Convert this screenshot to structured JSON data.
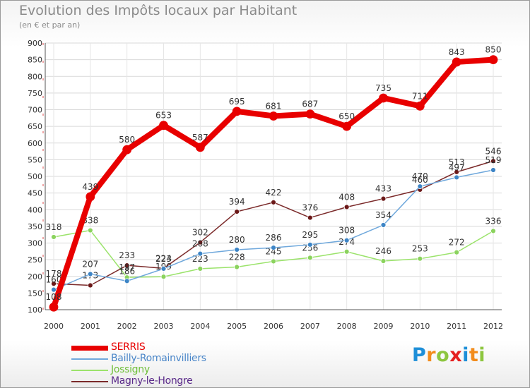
{
  "title": "Evolution des Impôts locaux par Habitant",
  "subtitle": "(en € et par an)",
  "brand": {
    "letters": [
      {
        "ch": "P",
        "color": "#1e8fd8"
      },
      {
        "ch": "r",
        "color": "#f28c1c"
      },
      {
        "ch": "o",
        "color": "#8dc63f"
      },
      {
        "ch": "x",
        "color": "#e52020"
      },
      {
        "ch": "i",
        "color": "#1e8fd8"
      },
      {
        "ch": "t",
        "color": "#f28c1c"
      },
      {
        "ch": "i",
        "color": "#8dc63f"
      }
    ]
  },
  "chart_data": {
    "type": "line",
    "categories": [
      "2000",
      "2001",
      "2002",
      "2003",
      "2004",
      "2005",
      "2006",
      "2007",
      "2008",
      "2009",
      "2010",
      "2011",
      "2012"
    ],
    "ylim": [
      100,
      900
    ],
    "yticks": [
      100,
      150,
      200,
      250,
      300,
      350,
      400,
      450,
      500,
      550,
      600,
      650,
      700,
      750,
      800,
      850,
      900
    ],
    "grid": true,
    "legend_position": "bottom-left",
    "series": [
      {
        "name": "SERRIS",
        "color": "#e80000",
        "dot_color": "#e80000",
        "line_width": 8,
        "values": [
          108,
          439,
          580,
          653,
          587,
          695,
          681,
          687,
          650,
          735,
          711,
          843,
          850
        ],
        "labels": [
          "108",
          "439",
          "580",
          "653",
          "587",
          "695",
          "681",
          "687",
          "650",
          "735",
          "711",
          "843",
          "850"
        ]
      },
      {
        "name": "Bailly-Romainvilliers",
        "color": "#6fa8dc",
        "dot_color": "#3d85c6",
        "line_width": 1.5,
        "values": [
          160,
          207,
          186,
          223,
          268,
          280,
          286,
          295,
          308,
          354,
          470,
          497,
          519
        ],
        "labels": [
          "160",
          "207",
          "186",
          "223",
          "268",
          "280",
          "286",
          "295",
          "308",
          "354",
          "470",
          "497",
          "519"
        ]
      },
      {
        "name": "Jossigny",
        "color": "#9be36b",
        "dot_color": "#8bd35e",
        "line_width": 1.5,
        "values": [
          318,
          338,
          197,
          199,
          223,
          228,
          245,
          256,
          274,
          246,
          253,
          272,
          336
        ],
        "labels": [
          "318",
          "338",
          "197",
          "199",
          "223",
          "228",
          "245",
          "256",
          "274",
          "246",
          "253",
          "272",
          "336"
        ]
      },
      {
        "name": "Magny-le-Hongre",
        "color": "#7b2a2a",
        "dot_color": "#6b1818",
        "line_width": 1.5,
        "values": [
          178,
          173,
          233,
          224,
          302,
          394,
          422,
          376,
          408,
          433,
          460,
          513,
          546
        ],
        "labels": [
          "178",
          "173",
          "233",
          "224",
          "302",
          "394",
          "422",
          "376",
          "408",
          "433",
          "460",
          "513",
          "546"
        ]
      }
    ]
  }
}
